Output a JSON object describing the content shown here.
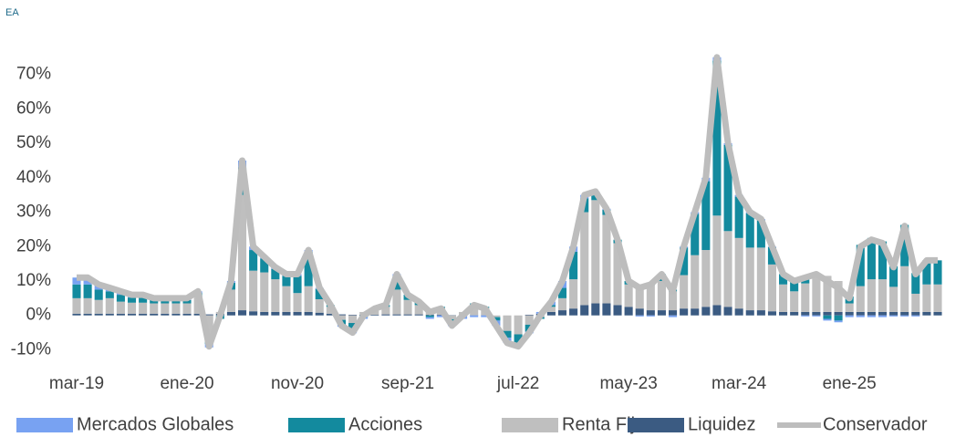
{
  "chart_data": {
    "type": "stacked-bar-line",
    "y_label": "EA",
    "categories": [
      "mar-19",
      null,
      null,
      null,
      null,
      null,
      null,
      null,
      null,
      null,
      "ene-20",
      null,
      null,
      null,
      null,
      null,
      null,
      null,
      null,
      null,
      "nov-20",
      null,
      null,
      null,
      null,
      null,
      null,
      null,
      null,
      null,
      "sep-21",
      null,
      null,
      null,
      null,
      null,
      null,
      null,
      null,
      null,
      "jul-22",
      null,
      null,
      null,
      null,
      null,
      null,
      null,
      null,
      null,
      "may-23",
      null,
      null,
      null,
      null,
      null,
      null,
      null,
      null,
      null,
      "mar-24",
      null,
      null,
      null,
      null,
      null,
      null,
      null,
      null,
      null,
      "ene-25",
      null,
      null,
      null,
      null,
      null,
      null,
      null,
      null
    ],
    "ylim": [
      -12,
      76
    ],
    "yticks": [
      {
        "value": -10,
        "label": "-10%"
      },
      {
        "value": 0,
        "label": "0%"
      },
      {
        "value": 10,
        "label": "10%"
      },
      {
        "value": 20,
        "label": "20%"
      },
      {
        "value": 30,
        "label": "30%"
      },
      {
        "value": 40,
        "label": "40%"
      },
      {
        "value": 50,
        "label": "50%"
      },
      {
        "value": 60,
        "label": "60%"
      },
      {
        "value": 70,
        "label": "70%"
      }
    ],
    "grid": false,
    "legend": "bottom",
    "series": [
      {
        "name": "Mercados Globales",
        "color": "#78a2f2",
        "kind": "bar",
        "values": [
          2,
          2,
          1.5,
          1,
          1,
          0.8,
          0.8,
          0.5,
          0.5,
          0.5,
          0.5,
          0.5,
          -1,
          0,
          0.5,
          2,
          1,
          0.5,
          0.5,
          0.5,
          0.5,
          0.5,
          0.3,
          0,
          -0.5,
          -1,
          -0.5,
          0,
          0,
          0.5,
          0,
          0,
          -0.5,
          -0.5,
          -1,
          -1,
          -0.5,
          -0.5,
          -1.5,
          -1.5,
          -1,
          -0.5,
          0.5,
          1,
          2,
          1.5,
          1,
          0.5,
          0.3,
          0,
          0,
          -0.3,
          -0.3,
          0,
          -0.5,
          0.3,
          0.5,
          1,
          1,
          0.5,
          0.5,
          0.3,
          0.3,
          0.2,
          0,
          0,
          -0.3,
          -0.3,
          -0.5,
          -0.5,
          -0.5,
          -0.5,
          -0.5,
          -0.5,
          -0.3,
          -0.3,
          -0.3,
          0,
          0
        ]
      },
      {
        "name": "Acciones",
        "color": "#138a9e",
        "kind": "bar",
        "values": [
          4,
          4,
          3,
          2,
          2,
          1.5,
          1.5,
          1,
          1,
          1,
          1,
          1,
          -2,
          -1,
          2,
          8,
          6,
          4,
          3,
          3,
          5,
          10,
          3,
          0.5,
          -1.5,
          -2,
          -0.5,
          0.5,
          0.5,
          4,
          1.5,
          1,
          -0.5,
          0.3,
          -1,
          0,
          0.5,
          0.3,
          -1,
          -2,
          -2.5,
          -2,
          -0.5,
          0.5,
          3,
          8,
          4,
          2,
          1.5,
          1,
          1,
          0.5,
          0.5,
          2,
          0.5,
          8,
          12,
          20,
          45,
          25,
          12,
          10,
          8,
          5,
          3,
          3,
          2,
          1,
          -1,
          -1.5,
          2,
          12,
          12,
          11,
          6,
          12,
          6,
          7,
          7
        ]
      },
      {
        "name": "Renta Fija",
        "color": "#bfbfbf",
        "kind": "bar",
        "values": [
          4.5,
          4.5,
          4,
          4.5,
          3.5,
          3.2,
          3.2,
          3,
          3,
          3,
          3,
          5,
          -6.3,
          0.5,
          6.5,
          33.5,
          11.8,
          11.5,
          9.5,
          7.5,
          5.5,
          7.5,
          3.9,
          2,
          -1.3,
          -2.2,
          0.8,
          1.3,
          2.2,
          7.2,
          4.2,
          2.7,
          1.8,
          2,
          -1.1,
          0.9,
          2.9,
          2.1,
          -0.5,
          -4.5,
          -5.5,
          -2.7,
          -0.5,
          1.5,
          3.5,
          8.5,
          27,
          30,
          25.7,
          18,
          6.5,
          5.8,
          7.3,
          8.5,
          5.5,
          9.7,
          15.5,
          16.5,
          26,
          22,
          20.5,
          18.2,
          18.2,
          13.6,
          8,
          6,
          8.3,
          10.3,
          10.5,
          9,
          2.5,
          7.5,
          9.5,
          9.5,
          7.3,
          13.3,
          5.3,
          8,
          8
        ]
      },
      {
        "name": "Liquidez",
        "color": "#3b5b82",
        "kind": "bar",
        "values": [
          0.5,
          0.5,
          0.5,
          0.5,
          0.5,
          0.5,
          0.5,
          0.5,
          0.5,
          0.5,
          0.5,
          0.5,
          0.3,
          0.5,
          1,
          1.5,
          1.2,
          1,
          1,
          1,
          1,
          1,
          0.8,
          0.5,
          0.3,
          0.2,
          0.2,
          0.2,
          0.3,
          0.3,
          0.3,
          0.3,
          0.2,
          0.2,
          0.1,
          0.1,
          0.1,
          0.1,
          0,
          0,
          0,
          0.2,
          0.5,
          1,
          1.5,
          2,
          3,
          3.5,
          3.5,
          3,
          2.5,
          2,
          1.5,
          1.5,
          1.5,
          2,
          2,
          2.5,
          3,
          2.5,
          2,
          1.5,
          1.5,
          1.2,
          1,
          1,
          1,
          1,
          1,
          1,
          1,
          1,
          1,
          1,
          1,
          1,
          1,
          1,
          1
        ]
      },
      {
        "name": "Conservador",
        "color": "#bdbdbd",
        "kind": "line",
        "values": [
          11,
          11,
          9,
          8,
          7,
          6,
          6,
          5,
          5,
          5,
          5,
          7,
          -9,
          0,
          10,
          45,
          20,
          17,
          14,
          12,
          12,
          19,
          8,
          3,
          -3,
          -5,
          0,
          2,
          3,
          12,
          6,
          4,
          1,
          2,
          -3,
          0,
          3,
          2,
          -3,
          -8,
          -9,
          -5,
          0,
          4,
          10,
          20,
          35,
          36,
          31,
          22,
          10,
          8,
          9,
          12,
          7,
          20,
          30,
          40,
          75,
          50,
          35,
          30,
          28,
          20,
          12,
          10,
          11,
          12,
          10,
          8,
          5,
          20,
          22,
          21,
          14,
          26,
          12,
          16,
          16
        ]
      }
    ]
  }
}
